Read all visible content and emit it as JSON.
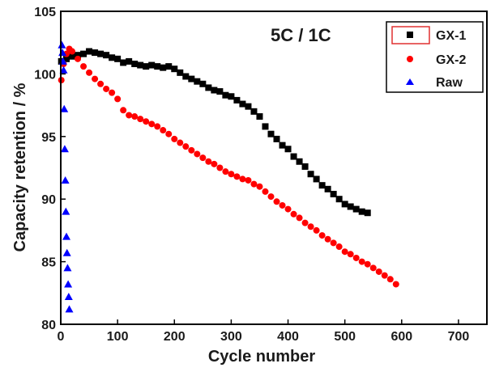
{
  "chart_data": {
    "type": "scatter",
    "title": "",
    "annotation": "5C / 1C",
    "xlabel": "Cycle number",
    "ylabel": "Capacity retention / %",
    "xlim": [
      0,
      750
    ],
    "ylim": [
      80,
      105
    ],
    "x_ticks": [
      0,
      100,
      200,
      300,
      400,
      500,
      600,
      700
    ],
    "y_ticks": [
      80,
      85,
      90,
      95,
      100,
      105
    ],
    "grid": false,
    "legend_position": "top-right",
    "series": [
      {
        "name": "GX-1",
        "marker": "square",
        "color": "#000000",
        "x": [
          1,
          10,
          20,
          30,
          40,
          50,
          60,
          70,
          80,
          90,
          100,
          110,
          120,
          130,
          140,
          150,
          160,
          170,
          180,
          190,
          200,
          210,
          220,
          230,
          240,
          250,
          260,
          270,
          280,
          290,
          300,
          310,
          320,
          330,
          340,
          350,
          360,
          370,
          380,
          390,
          400,
          410,
          420,
          430,
          440,
          450,
          460,
          470,
          480,
          490,
          500,
          510,
          520,
          530,
          540
        ],
        "y": [
          101.0,
          101.2,
          101.4,
          101.5,
          101.6,
          101.8,
          101.7,
          101.6,
          101.5,
          101.3,
          101.2,
          100.9,
          101.0,
          100.8,
          100.7,
          100.6,
          100.7,
          100.6,
          100.5,
          100.6,
          100.4,
          100.1,
          99.8,
          99.6,
          99.4,
          99.2,
          98.9,
          98.7,
          98.6,
          98.3,
          98.2,
          97.9,
          97.6,
          97.4,
          97.0,
          96.6,
          95.8,
          95.2,
          94.8,
          94.3,
          94.0,
          93.4,
          93.0,
          92.6,
          92.0,
          91.6,
          91.1,
          90.8,
          90.4,
          90.0,
          89.6,
          89.4,
          89.2,
          89.0,
          88.9
        ]
      },
      {
        "name": "GX-2",
        "marker": "circle",
        "color": "#ff0000",
        "x": [
          1,
          5,
          10,
          15,
          20,
          30,
          40,
          50,
          60,
          70,
          80,
          90,
          100,
          110,
          120,
          130,
          140,
          150,
          160,
          170,
          180,
          190,
          200,
          210,
          220,
          230,
          240,
          250,
          260,
          270,
          280,
          290,
          300,
          310,
          320,
          330,
          340,
          350,
          360,
          370,
          380,
          390,
          400,
          410,
          420,
          430,
          440,
          450,
          460,
          470,
          480,
          490,
          500,
          510,
          520,
          530,
          540,
          550,
          560,
          570,
          580,
          590
        ],
        "y": [
          99.5,
          100.8,
          101.6,
          102.0,
          101.8,
          101.2,
          100.6,
          100.1,
          99.6,
          99.2,
          98.8,
          98.5,
          98.0,
          97.1,
          96.7,
          96.6,
          96.4,
          96.2,
          96.0,
          95.8,
          95.5,
          95.2,
          94.8,
          94.5,
          94.2,
          93.9,
          93.6,
          93.3,
          93.0,
          92.8,
          92.5,
          92.2,
          92.0,
          91.8,
          91.6,
          91.5,
          91.2,
          91.0,
          90.6,
          90.2,
          89.8,
          89.5,
          89.2,
          88.8,
          88.5,
          88.1,
          87.8,
          87.5,
          87.1,
          86.8,
          86.5,
          86.2,
          85.8,
          85.6,
          85.3,
          85.0,
          84.8,
          84.5,
          84.2,
          83.9,
          83.6,
          83.2
        ]
      },
      {
        "name": "Raw",
        "marker": "triangle",
        "color": "#0000ff",
        "x": [
          2,
          3,
          4,
          5,
          6,
          7,
          8,
          9,
          10,
          11,
          12,
          13,
          14,
          15
        ],
        "y": [
          102.3,
          101.7,
          101.0,
          100.3,
          97.2,
          94.0,
          91.5,
          89.0,
          87.0,
          85.7,
          84.5,
          83.2,
          82.2,
          81.2
        ]
      }
    ]
  }
}
